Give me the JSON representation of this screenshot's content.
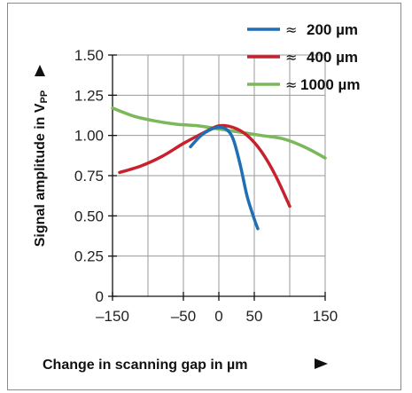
{
  "chart_data": {
    "type": "line",
    "xlabel": "Change in scanning gap in µm",
    "ylabel_main": "Signal amplitude in V",
    "ylabel_sub": "PP",
    "xlim": [
      -150,
      150
    ],
    "ylim": [
      0,
      1.5
    ],
    "x_ticks": [
      -150,
      -50,
      0,
      50,
      150
    ],
    "x_tick_labels": [
      "–150",
      "–50",
      "0",
      "50",
      "150"
    ],
    "x_grid": [
      -100,
      -50,
      0,
      50,
      100,
      150
    ],
    "y_ticks": [
      0,
      0.25,
      0.5,
      0.75,
      1.0,
      1.25,
      1.5
    ],
    "y_tick_labels": [
      "0",
      "0.25",
      "0.50",
      "0.75",
      "1.00",
      "1.25",
      "1.50"
    ],
    "grid": true,
    "legend_position": "top-right",
    "approx_symbol": "≈",
    "series": [
      {
        "name": "200 µm",
        "color": "#1f6fb5",
        "x": [
          -40,
          -25,
          -10,
          0,
          10,
          20,
          30,
          40,
          50,
          55
        ],
        "y": [
          0.93,
          1.0,
          1.04,
          1.05,
          1.04,
          0.98,
          0.82,
          0.62,
          0.48,
          0.42
        ]
      },
      {
        "name": "400 µm",
        "color": "#c8202c",
        "x": [
          -140,
          -110,
          -80,
          -50,
          -20,
          0,
          20,
          40,
          60,
          80,
          100
        ],
        "y": [
          0.77,
          0.81,
          0.87,
          0.95,
          1.02,
          1.06,
          1.05,
          1.0,
          0.9,
          0.75,
          0.56
        ]
      },
      {
        "name": "1000 µm",
        "color": "#7ab85a",
        "x": [
          -150,
          -120,
          -90,
          -60,
          -30,
          0,
          30,
          60,
          90,
          120,
          150
        ],
        "y": [
          1.17,
          1.12,
          1.09,
          1.07,
          1.06,
          1.04,
          1.02,
          1.0,
          0.98,
          0.93,
          0.86
        ]
      }
    ]
  }
}
